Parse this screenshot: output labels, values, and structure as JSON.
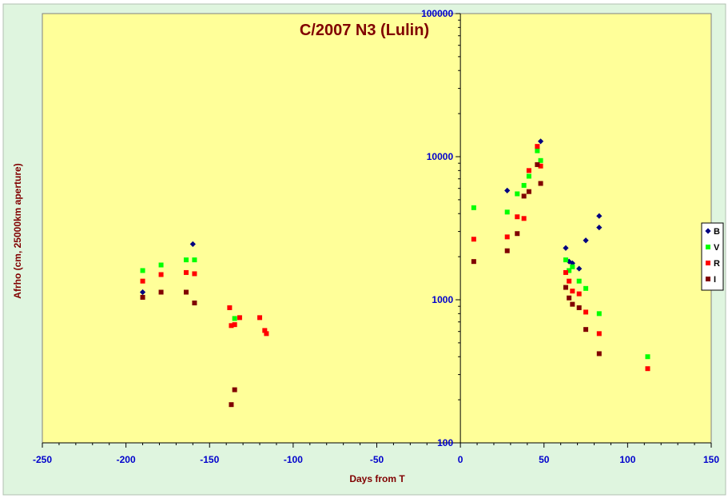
{
  "colors": {
    "chart_area": "#dff5df",
    "plot_area": "#ffff99",
    "title": "#800000",
    "axis_title": "#800000",
    "tick_labels": "#0000cc",
    "series": {
      "B": "#000080",
      "V": "#00ff00",
      "R": "#ff0000",
      "I": "#800000"
    }
  },
  "chart_data": {
    "type": "scatter",
    "title": "C/2007 N3 (Lulin)",
    "xlabel": "Days from T",
    "ylabel": "Afrho (cm, 25000km aperture)",
    "xlim": [
      -250,
      150
    ],
    "ylim": [
      100,
      100000
    ],
    "y_scale": "log",
    "x_ticks": [
      -250,
      -200,
      -150,
      -100,
      -50,
      0,
      50,
      100,
      150
    ],
    "x_tick_labels": [
      "-250",
      "-200",
      "-150",
      "-100",
      "-50",
      "0",
      "50",
      "100",
      "150"
    ],
    "y_ticks": [
      100,
      1000,
      10000,
      100000
    ],
    "y_tick_labels": [
      "100",
      "1000",
      "10000",
      "100000"
    ],
    "grid": false,
    "y_axis_position": "x = 0",
    "legend_position": "right",
    "series": [
      {
        "name": "B",
        "marker": "diamond",
        "points": [
          [
            -190,
            1130
          ],
          [
            -160,
            2450
          ],
          [
            28,
            5800
          ],
          [
            48,
            12800
          ],
          [
            63,
            2300
          ],
          [
            65,
            1850
          ],
          [
            67,
            1800
          ],
          [
            71,
            1650
          ],
          [
            75,
            2600
          ],
          [
            83,
            3200
          ],
          [
            83,
            3850
          ]
        ]
      },
      {
        "name": "V",
        "marker": "square",
        "points": [
          [
            -190,
            1600
          ],
          [
            -179,
            1750
          ],
          [
            -164,
            1900
          ],
          [
            -159,
            1900
          ],
          [
            -135,
            740
          ],
          [
            8,
            4400
          ],
          [
            28,
            4100
          ],
          [
            34,
            5500
          ],
          [
            38,
            6300
          ],
          [
            41,
            7300
          ],
          [
            46,
            11000
          ],
          [
            48,
            9400
          ],
          [
            63,
            1900
          ],
          [
            65,
            1600
          ],
          [
            67,
            1700
          ],
          [
            71,
            1350
          ],
          [
            75,
            1200
          ],
          [
            83,
            800
          ],
          [
            112,
            400
          ]
        ]
      },
      {
        "name": "R",
        "marker": "square",
        "points": [
          [
            -190,
            1350
          ],
          [
            -179,
            1500
          ],
          [
            -164,
            1550
          ],
          [
            -159,
            1520
          ],
          [
            -138,
            880
          ],
          [
            -137,
            660
          ],
          [
            -135,
            670
          ],
          [
            -132,
            750
          ],
          [
            -120,
            750
          ],
          [
            -117,
            610
          ],
          [
            -116,
            580
          ],
          [
            8,
            2650
          ],
          [
            28,
            2750
          ],
          [
            34,
            3800
          ],
          [
            38,
            3700
          ],
          [
            41,
            8000
          ],
          [
            46,
            11800
          ],
          [
            48,
            8600
          ],
          [
            63,
            1550
          ],
          [
            65,
            1350
          ],
          [
            67,
            1150
          ],
          [
            71,
            1100
          ],
          [
            75,
            820
          ],
          [
            83,
            580
          ],
          [
            112,
            330
          ]
        ]
      },
      {
        "name": "I",
        "marker": "square",
        "points": [
          [
            -190,
            1040
          ],
          [
            -179,
            1130
          ],
          [
            -164,
            1130
          ],
          [
            -159,
            950
          ],
          [
            -137,
            185
          ],
          [
            -135,
            235
          ],
          [
            8,
            1850
          ],
          [
            28,
            2200
          ],
          [
            34,
            2900
          ],
          [
            38,
            5300
          ],
          [
            41,
            5700
          ],
          [
            46,
            8800
          ],
          [
            48,
            6500
          ],
          [
            63,
            1220
          ],
          [
            65,
            1030
          ],
          [
            67,
            930
          ],
          [
            71,
            880
          ],
          [
            75,
            620
          ],
          [
            83,
            420
          ]
        ]
      }
    ]
  }
}
